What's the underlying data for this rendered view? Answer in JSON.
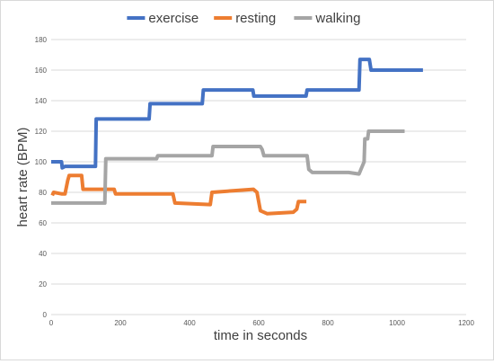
{
  "chart_data": {
    "type": "line",
    "title": "",
    "xlabel": "time in seconds",
    "ylabel": "heart rate (BPM)",
    "xlim": [
      0,
      1200
    ],
    "ylim": [
      0,
      180
    ],
    "xticks": [
      0,
      200,
      400,
      600,
      800,
      1000,
      1200
    ],
    "yticks": [
      0,
      20,
      40,
      60,
      80,
      100,
      120,
      140,
      160,
      180
    ],
    "grid": "horizontal",
    "legend_position": "top",
    "series": [
      {
        "name": "exercise",
        "color": "#4472c4",
        "points": [
          [
            0,
            100
          ],
          [
            30,
            100
          ],
          [
            32,
            96
          ],
          [
            40,
            97
          ],
          [
            128,
            97
          ],
          [
            130,
            128
          ],
          [
            283,
            128
          ],
          [
            286,
            138
          ],
          [
            437,
            138
          ],
          [
            440,
            147
          ],
          [
            583,
            147
          ],
          [
            586,
            143
          ],
          [
            737,
            143
          ],
          [
            740,
            147
          ],
          [
            890,
            147
          ],
          [
            893,
            167
          ],
          [
            920,
            167
          ],
          [
            925,
            160
          ],
          [
            1075,
            160
          ]
        ]
      },
      {
        "name": "resting",
        "color": "#ed7d31",
        "points": [
          [
            3,
            78
          ],
          [
            7,
            80
          ],
          [
            30,
            79
          ],
          [
            40,
            79
          ],
          [
            48,
            88
          ],
          [
            52,
            91
          ],
          [
            88,
            91
          ],
          [
            92,
            82
          ],
          [
            182,
            82
          ],
          [
            186,
            79
          ],
          [
            352,
            79
          ],
          [
            358,
            73
          ],
          [
            460,
            72
          ],
          [
            465,
            80
          ],
          [
            585,
            82
          ],
          [
            595,
            80
          ],
          [
            605,
            68
          ],
          [
            625,
            66
          ],
          [
            700,
            67
          ],
          [
            710,
            69
          ],
          [
            715,
            74
          ],
          [
            738,
            74
          ]
        ]
      },
      {
        "name": "walking",
        "color": "#a5a5a5",
        "points": [
          [
            0,
            73
          ],
          [
            155,
            73
          ],
          [
            158,
            102
          ],
          [
            305,
            102
          ],
          [
            308,
            104
          ],
          [
            465,
            104
          ],
          [
            468,
            110
          ],
          [
            605,
            110
          ],
          [
            610,
            108
          ],
          [
            615,
            104
          ],
          [
            740,
            104
          ],
          [
            745,
            95
          ],
          [
            755,
            93
          ],
          [
            860,
            93
          ],
          [
            890,
            92
          ],
          [
            905,
            100
          ],
          [
            907,
            115
          ],
          [
            915,
            115
          ],
          [
            918,
            120
          ],
          [
            1022,
            120
          ]
        ]
      }
    ]
  }
}
